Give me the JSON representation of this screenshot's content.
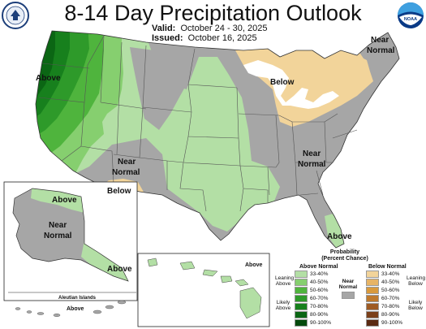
{
  "header": {
    "title": "8-14 Day Precipitation Outlook",
    "valid_label": "Valid:",
    "valid_value": "October 24 - 30, 2025",
    "issued_label": "Issued:",
    "issued_value": "October 16, 2025"
  },
  "logos": {
    "left": "Department of Commerce seal",
    "left_text": "DEPARTMENT OF COMMERCE",
    "right": "NOAA logo",
    "right_text": "NOAA"
  },
  "map_labels": {
    "above_west": "Above",
    "below_great_lakes": "Below",
    "near_normal_ne_1": "Near",
    "near_normal_ne_2": "Normal",
    "near_normal_sw_1": "Near",
    "near_normal_sw_2": "Normal",
    "below_sw": "Below",
    "near_normal_se_1": "Near",
    "near_normal_se_2": "Normal",
    "above_fl": "Above"
  },
  "alaska": {
    "above_north": "Above",
    "near_1": "Near",
    "near_2": "Normal",
    "above_se": "Above",
    "aleutian_title": "Aleutian Islands",
    "aleutian_above": "Above"
  },
  "hawaii": {
    "above": "Above"
  },
  "legend": {
    "title_1": "Probability",
    "title_2": "(Percent Chance)",
    "above_header": "Above Normal",
    "below_header": "Below Normal",
    "near_1": "Near",
    "near_2": "Normal",
    "leaning_above": "Leaning Above",
    "likely_above": "Likely Above",
    "leaning_below": "Leaning Below",
    "likely_below": "Likely Below",
    "ranges": [
      "33-40%",
      "40-50%",
      "50-60%",
      "60-70%",
      "70-80%",
      "80-90%",
      "90-100%"
    ],
    "above_colors": [
      "#b3dfa5",
      "#86cf6f",
      "#4fb43d",
      "#2e9a2a",
      "#17801d",
      "#0b6614",
      "#054a0d"
    ],
    "below_colors": [
      "#f2d49a",
      "#e7b465",
      "#d99a3c",
      "#bf7a2c",
      "#9e5b23",
      "#7b401a",
      "#5a2a12"
    ],
    "near_color": "#a6a6a6"
  }
}
